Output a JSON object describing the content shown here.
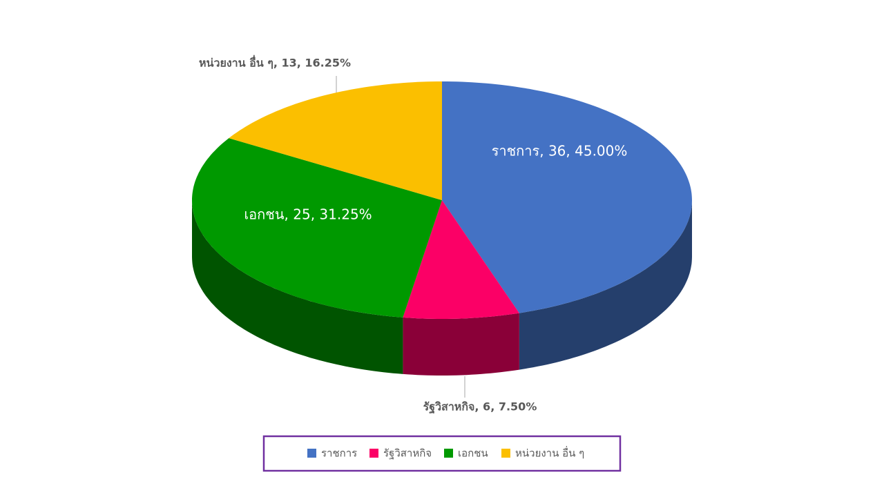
{
  "chart_data": {
    "type": "pie3d",
    "categories": [
      "ราชการ",
      "รัฐวิสาหกิจ",
      "เอกชน",
      "หน่วยงาน อื่น ๆ"
    ],
    "values": [
      36,
      6,
      25,
      13
    ],
    "value_labels": [
      "ราชการ, 36, 45.00%",
      "รัฐวิสาหกิจ, 6, 7.50%",
      "เอกชน, 25, 31.25%",
      "หน่วยงาน อื่น ๆ, 13, 16.25%"
    ],
    "colors": [
      "#4472c4",
      "#fb0066",
      "#009900",
      "#fbbf00"
    ],
    "legend": "bottom"
  }
}
